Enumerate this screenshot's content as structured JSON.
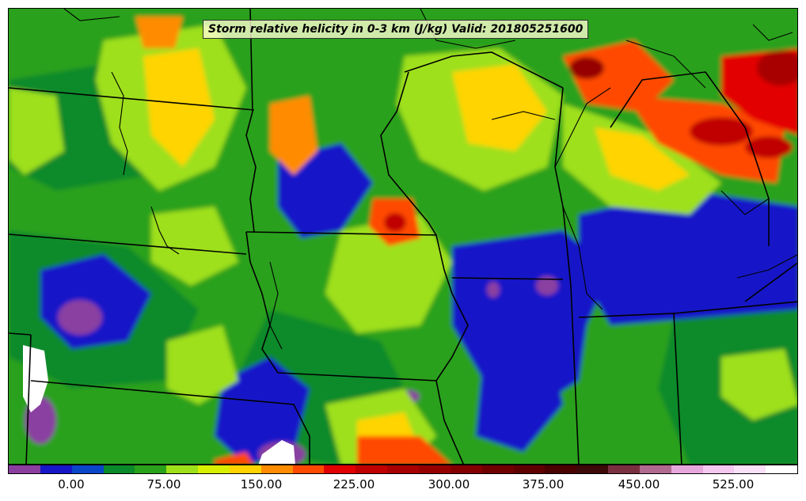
{
  "title": "Storm relative helicity in 0-3 km (J/kg) Valid: 201805251600",
  "colorbar": {
    "colors": [
      "#8a3fa0",
      "#1616c8",
      "#0a46c8",
      "#0a8a2a",
      "#2aa11a",
      "#9ee01a",
      "#d8f000",
      "#ffd400",
      "#ff8c00",
      "#ff4a00",
      "#e30000",
      "#c00000",
      "#a80000",
      "#960000",
      "#840000",
      "#700000",
      "#5e0000",
      "#4a0000",
      "#3c0808",
      "#7a3040",
      "#b06a90",
      "#e6a8dc",
      "#f4c8f0",
      "#fae0f8",
      "#ffffff"
    ],
    "tick_labels": [
      "0.00",
      "75.00",
      "150.00",
      "225.00",
      "300.00",
      "375.00",
      "450.00",
      "525.00"
    ]
  },
  "map": {
    "background_color": "#2aa11a",
    "boundary_color": "#000000"
  }
}
